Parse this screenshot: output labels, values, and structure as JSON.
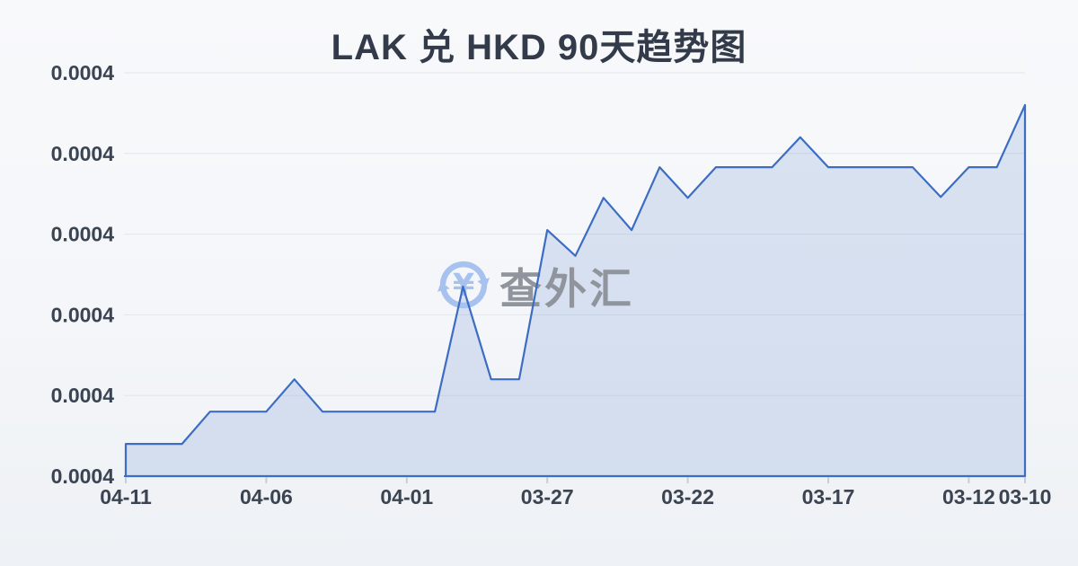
{
  "title": "LAK 兑 HKD 90天趋势图",
  "watermark": {
    "text": "查外汇",
    "icon": "currency-exchange-icon"
  },
  "colors": {
    "line": "#3d6dc3",
    "fill": "rgba(61,109,195,0.16)",
    "grid": "#e2e5ea",
    "tick": "#c9ced6",
    "axis_label": "#3b4452",
    "title": "#333b4a",
    "watermark_text": "#8f949d",
    "watermark_icon": "#a7c2ef",
    "background_top": "#f8f9fb",
    "background_bottom": "#eef1f5"
  },
  "chart_data": {
    "type": "area",
    "title": "LAK 兑 HKD 90天趋势图",
    "xlabel": "",
    "ylabel": "",
    "grid": true,
    "legend": false,
    "ylim": [
      0.00036,
      0.00041
    ],
    "y_tick_labels": [
      "0.0004",
      "0.0004",
      "0.0004",
      "0.0004",
      "0.0004",
      "0.0004"
    ],
    "x": [
      "04-11",
      "04-10",
      "04-09",
      "04-08",
      "04-07",
      "04-06",
      "04-05",
      "04-04",
      "04-03",
      "04-02",
      "04-01",
      "03-31",
      "03-30",
      "03-29",
      "03-28",
      "03-27",
      "03-26",
      "03-25",
      "03-24",
      "03-23",
      "03-22",
      "03-21",
      "03-20",
      "03-19",
      "03-18",
      "03-17",
      "03-16",
      "03-15",
      "03-14",
      "03-13",
      "03-12",
      "03-11",
      "03-10"
    ],
    "values": [
      0.000364,
      0.000364,
      0.000364,
      0.000368,
      0.000368,
      0.000368,
      0.000372,
      0.000368,
      0.000368,
      0.000368,
      0.000368,
      0.000368,
      0.0003835,
      0.000372,
      0.000372,
      0.0003905,
      0.0003873,
      0.0003945,
      0.0003905,
      0.0003983,
      0.0003945,
      0.0003983,
      0.0003983,
      0.0003983,
      0.000402,
      0.0003983,
      0.0003983,
      0.0003983,
      0.0003983,
      0.0003946,
      0.0003983,
      0.0003983,
      0.000406
    ],
    "x_tick_indices": [
      0,
      5,
      10,
      15,
      20,
      25,
      30,
      32
    ],
    "x_tick_labels": [
      "04-11",
      "04-06",
      "04-01",
      "03-27",
      "03-22",
      "03-17",
      "03-12",
      "03-10"
    ]
  }
}
